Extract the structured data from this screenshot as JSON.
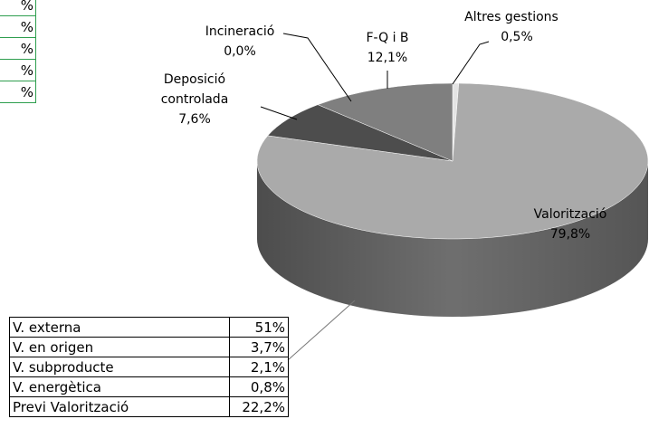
{
  "chart_data": {
    "type": "pie",
    "categories": [
      "Altres gestions",
      "Valorització",
      "Deposició controlada",
      "Incineració",
      "F-Q i B"
    ],
    "values": [
      0.5,
      79.8,
      7.6,
      0.0,
      12.1
    ],
    "value_labels": [
      "0,5%",
      "79,8%",
      "7,6%",
      "0,0%",
      "12,1%"
    ],
    "colors": [
      "#e4e4e4",
      "#aaaaaa",
      "#4d4d4d",
      "#333333",
      "#7f7f7f"
    ],
    "left_table": [
      "%",
      "%",
      "%",
      "%",
      "%"
    ],
    "breakdown": [
      [
        "V. externa",
        "51%"
      ],
      [
        "V. en origen",
        "3,7%"
      ],
      [
        "V. subproducte",
        "2,1%"
      ],
      [
        "V. energètica",
        "0,8%"
      ],
      [
        "Previ Valorització",
        "22,2%"
      ]
    ]
  }
}
